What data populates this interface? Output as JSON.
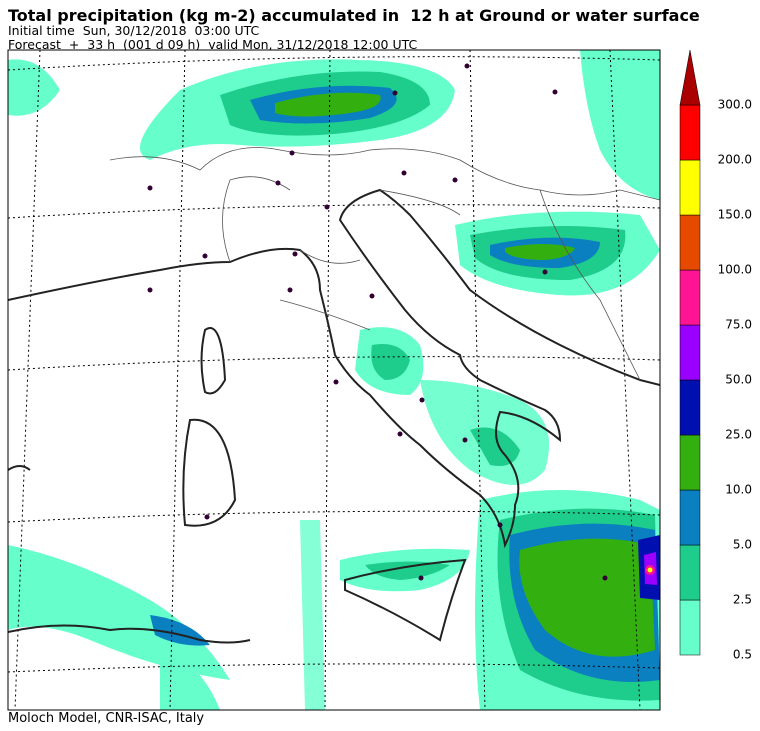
{
  "header": {
    "title": "Total precipitation (kg m-2) accumulated in  12 h at Ground or water surface",
    "initial_time": "Initial time  Sun, 30/12/2018  03:00 UTC",
    "forecast": "Forecast  +  33 h  (001 d 09 h)  valid Mon, 31/12/2018 12:00 UTC"
  },
  "colorbar": {
    "levels": [
      {
        "value": 0.5,
        "label": "0.5"
      },
      {
        "value": 2.5,
        "label": "2.5"
      },
      {
        "value": 5,
        "label": "5.0"
      },
      {
        "value": 10,
        "label": "10.0"
      },
      {
        "value": 25,
        "label": "25.0"
      },
      {
        "value": 50,
        "label": "50.0"
      },
      {
        "value": 75,
        "label": "75.0"
      },
      {
        "value": 100,
        "label": "100.0"
      },
      {
        "value": 150,
        "label": "150.0"
      },
      {
        "value": 200,
        "label": "200.0"
      },
      {
        "value": 300,
        "label": "300.0"
      }
    ],
    "colors": [
      "#66ffcc",
      "#1ecc8c",
      "#0a80c0",
      "#33b010",
      "#0010b0",
      "#9900ff",
      "#ff1493",
      "#e64a00",
      "#ffff00",
      "#ff0000",
      "#aa0000"
    ]
  },
  "footer": "Moloch Model, CNR-ISAC, Italy"
}
